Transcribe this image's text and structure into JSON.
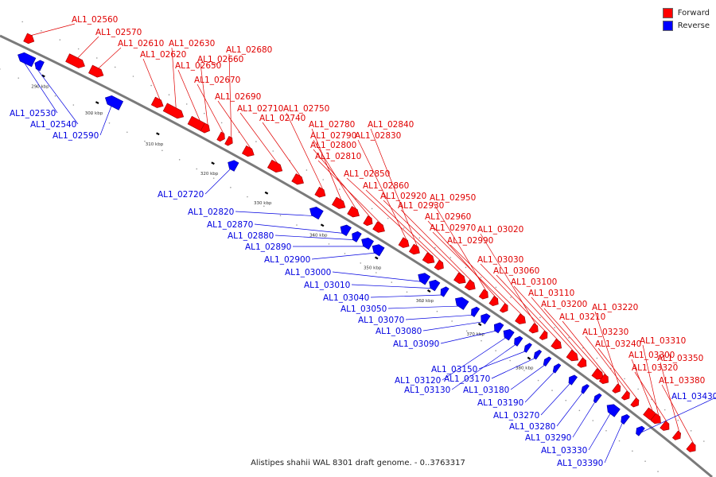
{
  "legend": [
    {
      "label": "Forward",
      "color": "#ff0000"
    },
    {
      "label": "Reverse",
      "color": "#0000ff"
    }
  ],
  "caption": "Alistipes shahii WAL 8301 draft genome. - 0..3763317",
  "ticks": [
    "290 kbp",
    "300 kbp",
    "310 kbp",
    "320 kbp",
    "330 kbp",
    "340 kbp",
    "350 kbp",
    "360 kbp",
    "370 kbp",
    "380 kbp"
  ],
  "forward_labels": [
    "AL1_02560",
    "AL1_02570",
    "AL1_02610",
    "AL1_02620",
    "AL1_02630",
    "AL1_02650",
    "AL1_02660",
    "AL1_02670",
    "AL1_02680",
    "AL1_02690",
    "AL1_02710",
    "AL1_02740",
    "AL1_02750",
    "AL1_02780",
    "AL1_02790",
    "AL1_02800",
    "AL1_02810",
    "AL1_02830",
    "AL1_02840",
    "AL1_02850",
    "AL1_02860",
    "AL1_02920",
    "AL1_02930",
    "AL1_02950",
    "AL1_02960",
    "AL1_02970",
    "AL1_02990",
    "AL1_03020",
    "AL1_03030",
    "AL1_03060",
    "AL1_03100",
    "AL1_03110",
    "AL1_03200",
    "AL1_03210",
    "AL1_03220",
    "AL1_03230",
    "AL1_03240",
    "AL1_03300",
    "AL1_03310",
    "AL1_03320",
    "AL1_03350",
    "AL1_03380"
  ],
  "reverse_labels": [
    "AL1_02530",
    "AL1_02540",
    "AL1_02590",
    "AL1_02720",
    "AL1_02820",
    "AL1_02870",
    "AL1_02880",
    "AL1_02890",
    "AL1_02900",
    "AL1_03000",
    "AL1_03010",
    "AL1_03040",
    "AL1_03050",
    "AL1_03070",
    "AL1_03080",
    "AL1_03090",
    "AL1_03120",
    "AL1_03130",
    "AL1_03150",
    "AL1_03170",
    "AL1_03180",
    "AL1_03190",
    "AL1_03270",
    "AL1_03280",
    "AL1_03290",
    "AL1_03330",
    "AL1_03390",
    "AL1_03430"
  ]
}
